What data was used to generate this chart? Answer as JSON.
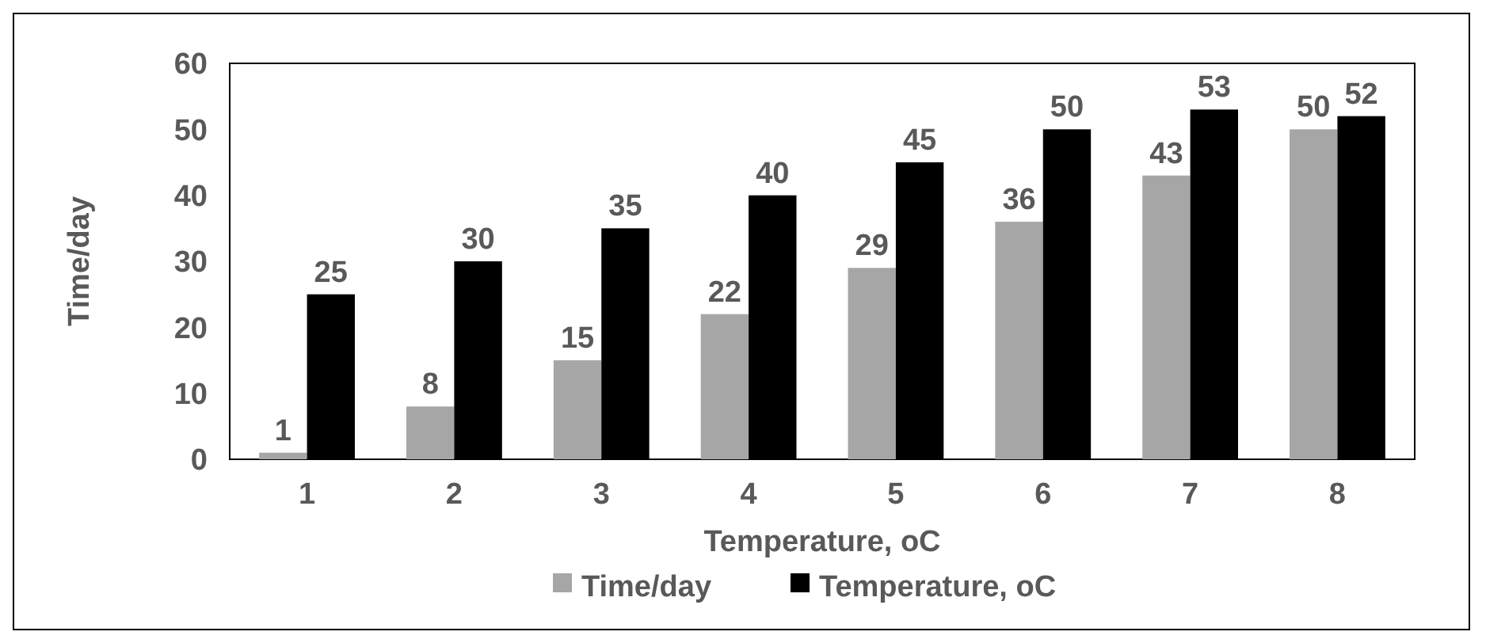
{
  "chart_data": {
    "type": "bar",
    "ylabel": "Time/day",
    "xlabel": "Temperature, oC",
    "categories": [
      "1",
      "2",
      "3",
      "4",
      "5",
      "6",
      "7",
      "8"
    ],
    "series": [
      {
        "name": "Time/day",
        "color": "#a6a6a6",
        "values": [
          1,
          8,
          15,
          22,
          29,
          36,
          43,
          50
        ]
      },
      {
        "name": "Temperature, oC",
        "color": "#000000",
        "values": [
          25,
          30,
          35,
          40,
          45,
          50,
          53,
          52
        ]
      }
    ],
    "ylim": [
      0,
      60
    ],
    "yticks": [
      0,
      10,
      20,
      30,
      40,
      50,
      60
    ],
    "data_labels": true,
    "legend": "bottom",
    "grid": false
  }
}
